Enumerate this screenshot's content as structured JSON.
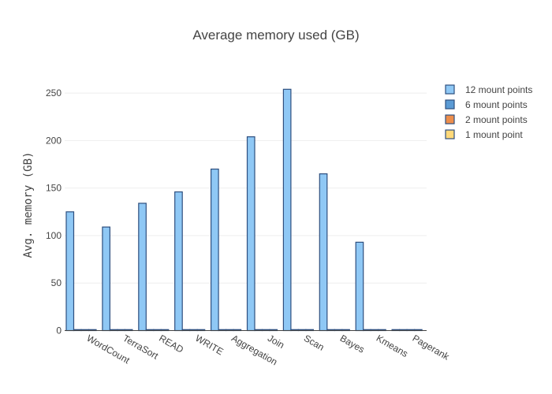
{
  "chart_data": {
    "type": "bar",
    "title": "Average memory used (GB)",
    "xlabel": "",
    "ylabel": "Avg. memory (GB)",
    "categories": [
      "WordCount",
      "TerraSort",
      "READ",
      "WRITE",
      "Aggregation",
      "Join",
      "Scan",
      "Bayes",
      "Kmeans",
      "Pagerank"
    ],
    "series": [
      {
        "name": "12 mount points",
        "color": "#8fc8f5",
        "values": [
          125,
          109,
          134,
          146,
          170,
          204,
          254,
          165,
          93,
          1
        ]
      },
      {
        "name": "6 mount points",
        "color": "#5b9bd5",
        "values": [
          1,
          1,
          1,
          1,
          1,
          1,
          1,
          1,
          1,
          1
        ]
      },
      {
        "name": "2 mount points",
        "color": "#ed8e4c",
        "values": [
          1,
          1,
          1,
          1,
          1,
          1,
          1,
          1,
          1,
          1
        ]
      },
      {
        "name": "1 mount point",
        "color": "#ffd97a",
        "values": [
          1,
          1,
          1,
          1,
          1,
          1,
          1,
          1,
          1,
          1
        ]
      }
    ],
    "ylim": [
      0,
      275
    ],
    "yticks": [
      0,
      50,
      100,
      150,
      200,
      250
    ],
    "grid": true,
    "legend_position": "top-right",
    "bar_outline_color": "#2e4f7f"
  }
}
